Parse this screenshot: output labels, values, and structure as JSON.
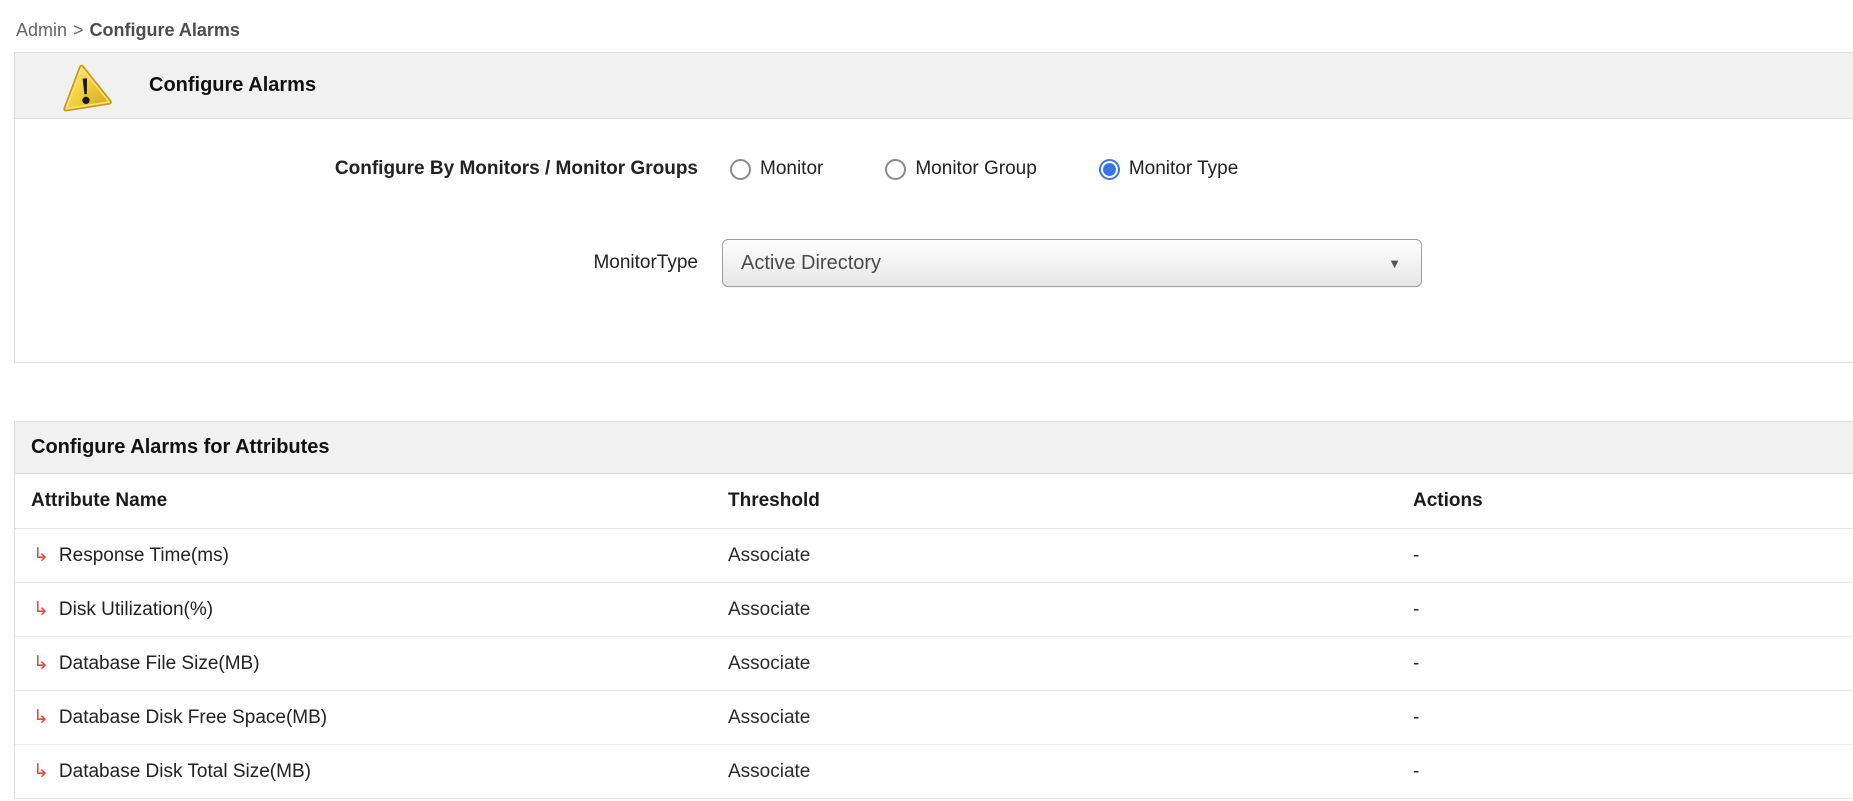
{
  "colors": {
    "accent_blue": "#3b76e8",
    "arrow_red": "#e5493d",
    "header_bg": "#f1f1f1",
    "border_gray": "#dcdcdc"
  },
  "breadcrumb": {
    "parent": "Admin",
    "separator": ">",
    "current": "Configure Alarms"
  },
  "panel": {
    "title": "Configure Alarms",
    "configure_by": {
      "label": "Configure By Monitors / Monitor Groups",
      "options": [
        {
          "label": "Monitor",
          "selected": false
        },
        {
          "label": "Monitor Group",
          "selected": false
        },
        {
          "label": "Monitor Type",
          "selected": true
        }
      ]
    },
    "monitor_type": {
      "label": "MonitorType",
      "value": "Active Directory",
      "dropdown_arrow": "▼"
    }
  },
  "attributes_section": {
    "title": "Configure Alarms for Attributes",
    "columns": [
      "Attribute Name",
      "Threshold",
      "Actions"
    ],
    "row_arrow": "↳",
    "rows": [
      {
        "name": "Response Time(ms)",
        "threshold": "Associate",
        "actions": "-"
      },
      {
        "name": "Disk Utilization(%)",
        "threshold": "Associate",
        "actions": "-"
      },
      {
        "name": "Database File Size(MB)",
        "threshold": "Associate",
        "actions": "-"
      },
      {
        "name": "Database Disk Free Space(MB)",
        "threshold": "Associate",
        "actions": "-"
      },
      {
        "name": "Database Disk Total Size(MB)",
        "threshold": "Associate",
        "actions": "-"
      }
    ]
  }
}
